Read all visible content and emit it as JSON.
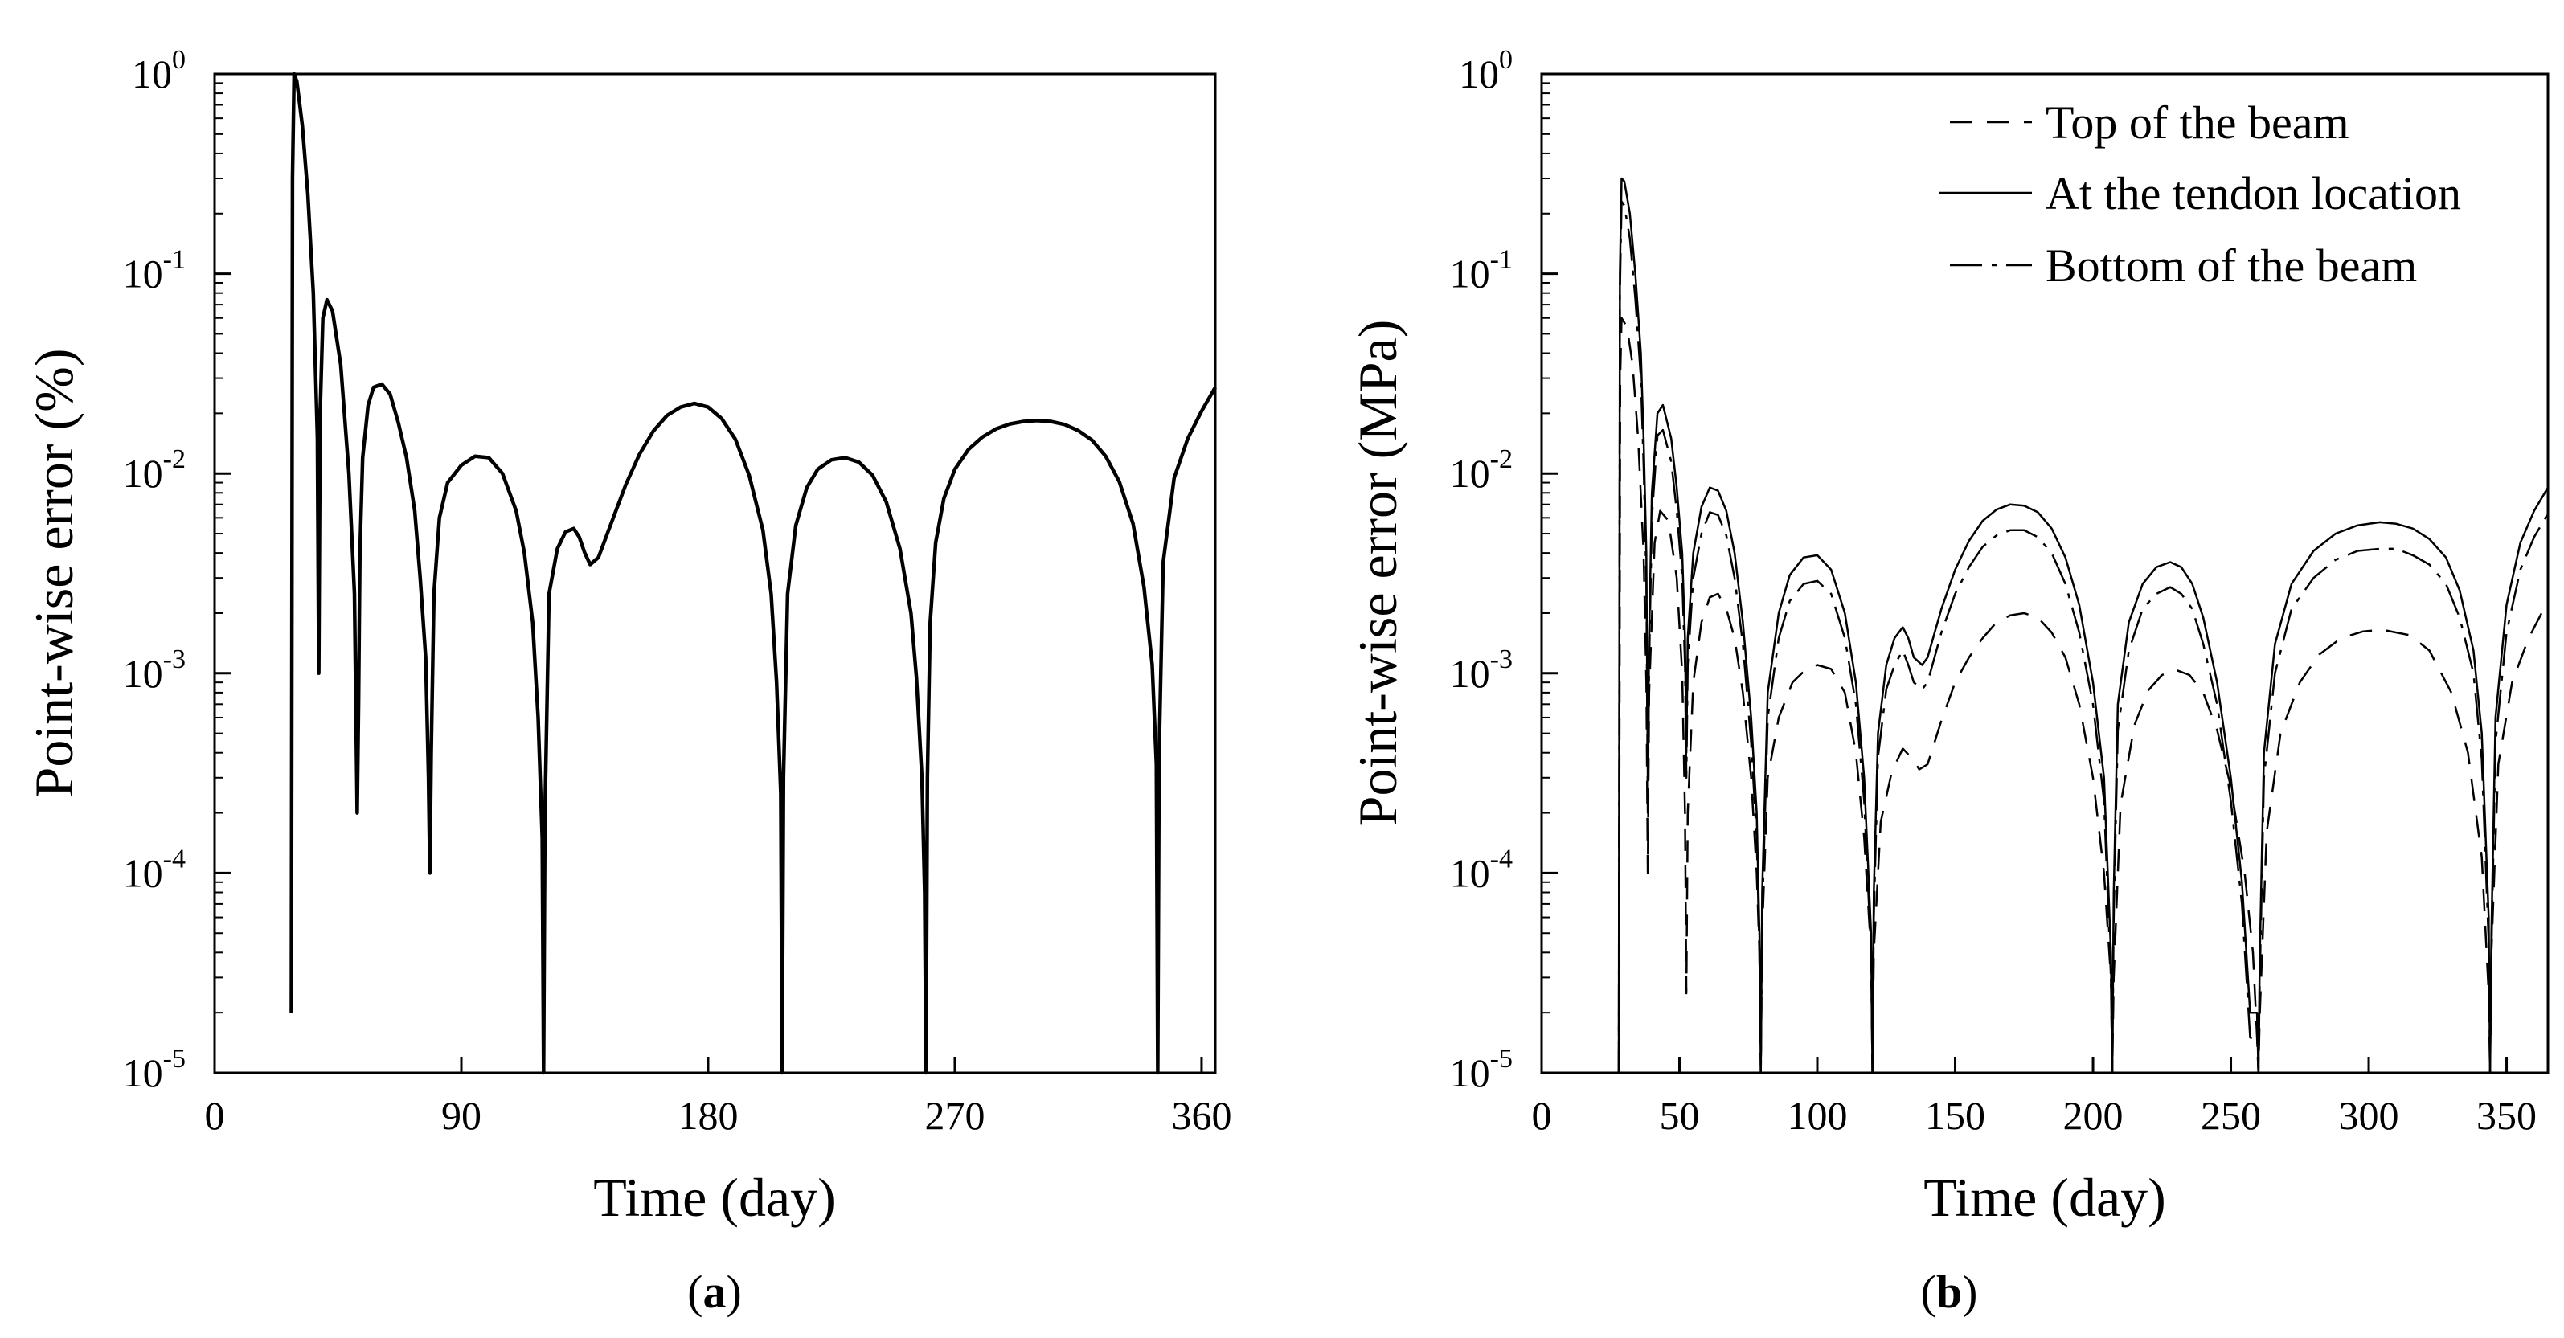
{
  "chart_data": [
    {
      "type": "line",
      "panel_label": "a",
      "xlabel": "Time (day)",
      "ylabel": "Point-wise error (%)",
      "xlim": [
        0,
        365
      ],
      "xticks": [
        0,
        90,
        180,
        270,
        360
      ],
      "ylim": [
        1e-05,
        1
      ],
      "yscale": "log",
      "yticks": [
        {
          "value": 1e-05,
          "base": "10",
          "exp": "-5"
        },
        {
          "value": 0.0001,
          "base": "10",
          "exp": "-4"
        },
        {
          "value": 0.001,
          "base": "10",
          "exp": "-3"
        },
        {
          "value": 0.01,
          "base": "10",
          "exp": "-2"
        },
        {
          "value": 0.1,
          "base": "10",
          "exp": "-1"
        },
        {
          "value": 1,
          "base": "10",
          "exp": "0"
        }
      ],
      "series": [
        {
          "name": "Point-wise error",
          "style": "solid-thick",
          "x": [
            28,
            28.4,
            29,
            30,
            32,
            34,
            36,
            37.5,
            38,
            38.5,
            39.5,
            41,
            43,
            46,
            49,
            51,
            52,
            52.5,
            53,
            54,
            56,
            58,
            61,
            64,
            67,
            70,
            73,
            75,
            77,
            78,
            78.5,
            79,
            80,
            82,
            85,
            90,
            95,
            100,
            105,
            110,
            113,
            116,
            118,
            119.5,
            120,
            120.5,
            122,
            125,
            128,
            131,
            133,
            135,
            137,
            140,
            145,
            150,
            155,
            160,
            165,
            170,
            175,
            180,
            185,
            190,
            195,
            200,
            203,
            205,
            206.5,
            207,
            207.5,
            209,
            212,
            216,
            220,
            225,
            230,
            235,
            240,
            245,
            250,
            254,
            256,
            258,
            259,
            259.5,
            260,
            261,
            263,
            266,
            270,
            275,
            280,
            285,
            290,
            295,
            300,
            305,
            310,
            315,
            320,
            325,
            330,
            335,
            339,
            342,
            343.5,
            344,
            344.5,
            346,
            350,
            355,
            360,
            365
          ],
          "y": [
            2e-05,
            0.3,
            1,
            0.92,
            0.55,
            0.25,
            0.08,
            0.015,
            0.001,
            0.02,
            0.06,
            0.074,
            0.065,
            0.035,
            0.01,
            0.0025,
            0.0002,
            0.0007,
            0.004,
            0.012,
            0.022,
            0.027,
            0.028,
            0.025,
            0.018,
            0.012,
            0.0065,
            0.003,
            0.0012,
            0.0003,
            0.0001,
            0.0004,
            0.0025,
            0.006,
            0.009,
            0.011,
            0.0122,
            0.012,
            0.01,
            0.0065,
            0.004,
            0.0018,
            0.0006,
            0.00015,
            1e-05,
            0.0002,
            0.0025,
            0.0042,
            0.0051,
            0.0053,
            0.0048,
            0.004,
            0.0035,
            0.0038,
            0.0058,
            0.0088,
            0.0125,
            0.0163,
            0.0195,
            0.0215,
            0.0224,
            0.0215,
            0.0188,
            0.0148,
            0.0098,
            0.0052,
            0.0025,
            0.0009,
            0.00025,
            1e-05,
            0.0003,
            0.0025,
            0.0055,
            0.0085,
            0.0105,
            0.0117,
            0.012,
            0.0114,
            0.0098,
            0.0072,
            0.0042,
            0.002,
            0.00095,
            0.0003,
            8e-05,
            1e-05,
            0.0003,
            0.0018,
            0.0045,
            0.0075,
            0.0105,
            0.0132,
            0.0152,
            0.0167,
            0.0177,
            0.0182,
            0.0184,
            0.0182,
            0.0176,
            0.0164,
            0.0147,
            0.0122,
            0.0091,
            0.0056,
            0.0027,
            0.0011,
            0.00035,
            1e-05,
            0.0004,
            0.0036,
            0.0095,
            0.015,
            0.0205,
            0.027
          ]
        }
      ]
    },
    {
      "type": "line",
      "panel_label": "b",
      "xlabel": "Time (day)",
      "ylabel": "Point-wise error (MPa)",
      "xlim": [
        0,
        365
      ],
      "xticks": [
        0,
        50,
        100,
        150,
        200,
        250,
        300,
        350
      ],
      "ylim": [
        1e-05,
        1
      ],
      "yscale": "log",
      "yticks": [
        {
          "value": 1e-05,
          "base": "10",
          "exp": "-5"
        },
        {
          "value": 0.0001,
          "base": "10",
          "exp": "-4"
        },
        {
          "value": 0.001,
          "base": "10",
          "exp": "-3"
        },
        {
          "value": 0.01,
          "base": "10",
          "exp": "-2"
        },
        {
          "value": 0.1,
          "base": "10",
          "exp": "-1"
        },
        {
          "value": 1,
          "base": "10",
          "exp": "0"
        }
      ],
      "legend_position": "top-right",
      "series": [
        {
          "name": "Top of the beam",
          "style": "dashed",
          "x": [
            28,
            28.5,
            29,
            31,
            33,
            35,
            37,
            38,
            38.5,
            39,
            41,
            43,
            46,
            49,
            51,
            52,
            52.5,
            53,
            55,
            58,
            61,
            64,
            67,
            70,
            73,
            76,
            78,
            79,
            79.5,
            80,
            82,
            86,
            91,
            96,
            100,
            105,
            110,
            114,
            117,
            119.5,
            120,
            120.5,
            123,
            127,
            131,
            134,
            137,
            140,
            145,
            150,
            155,
            160,
            165,
            170,
            175,
            180,
            185,
            190,
            195,
            200,
            204,
            206.5,
            207,
            207.5,
            210,
            215,
            220,
            225,
            230,
            235,
            240,
            245,
            250,
            255,
            258,
            259.5,
            260,
            260.5,
            263,
            268,
            275,
            282,
            290,
            298,
            305,
            310,
            315,
            322,
            330,
            336,
            341,
            343.5,
            344,
            344.5,
            347,
            352,
            358,
            365
          ],
          "y": [
            1e-05,
            0.03,
            0.06,
            0.054,
            0.035,
            0.015,
            0.004,
            0.0009,
            0.0001,
            0.0008,
            0.0045,
            0.0065,
            0.0058,
            0.003,
            0.001,
            0.0002,
            2.5e-05,
            0.0002,
            0.0009,
            0.0018,
            0.0024,
            0.0025,
            0.0021,
            0.0015,
            0.0008,
            0.0003,
            0.0001,
            4e-05,
            1e-05,
            5e-05,
            0.0003,
            0.0006,
            0.0009,
            0.00105,
            0.0011,
            0.00105,
            0.0008,
            0.0004,
            0.00015,
            4e-05,
            1e-05,
            4e-05,
            0.00018,
            0.00032,
            0.00042,
            0.00038,
            0.00033,
            0.00035,
            0.00058,
            0.0009,
            0.0012,
            0.0015,
            0.0018,
            0.00195,
            0.002,
            0.0019,
            0.0016,
            0.0012,
            0.0007,
            0.0003,
            0.0001,
            3e-05,
            1e-05,
            3e-05,
            0.00022,
            0.00055,
            0.00082,
            0.00098,
            0.00104,
            0.00098,
            0.0008,
            0.00052,
            0.00027,
            0.0001,
            4e-05,
            1.5e-05,
            1e-05,
            2e-05,
            0.00016,
            0.0005,
            0.0009,
            0.00124,
            0.0015,
            0.00162,
            0.00165,
            0.0016,
            0.00155,
            0.0013,
            0.0008,
            0.0004,
            0.00012,
            2.5e-05,
            1e-05,
            4e-05,
            0.00035,
            0.0009,
            0.0015,
            0.0023
          ]
        },
        {
          "name": "At the tendon location",
          "style": "solid",
          "x": [
            28,
            28.4,
            29,
            30,
            32,
            34,
            36,
            37,
            38,
            38.5,
            39,
            40,
            42,
            44,
            47,
            49,
            51,
            52,
            52.5,
            53,
            55,
            58,
            61,
            64,
            67,
            70,
            73,
            76,
            78,
            79,
            79.5,
            80,
            82,
            86,
            90,
            95,
            100,
            105,
            110,
            114,
            117,
            119.5,
            120,
            120.5,
            122,
            125,
            128,
            131,
            133,
            135,
            138,
            140,
            145,
            150,
            155,
            160,
            165,
            170,
            175,
            180,
            185,
            190,
            195,
            200,
            204,
            206.5,
            207,
            207.5,
            209,
            213,
            218,
            223,
            228,
            232,
            236,
            240,
            245,
            250,
            254,
            257,
            259.5,
            260,
            260.5,
            262,
            266,
            272,
            280,
            288,
            296,
            304,
            310,
            316,
            322,
            328,
            333,
            338,
            341,
            343.5,
            344,
            344.5,
            346,
            350,
            355,
            360,
            365
          ],
          "y": [
            1e-05,
            0.1,
            0.3,
            0.29,
            0.2,
            0.1,
            0.04,
            0.015,
            0.004,
            0.0003,
            0.0015,
            0.008,
            0.02,
            0.022,
            0.015,
            0.0085,
            0.004,
            0.0015,
            0.0004,
            0.0015,
            0.004,
            0.0068,
            0.0085,
            0.0082,
            0.0065,
            0.004,
            0.0018,
            0.0006,
            0.0002,
            5e-05,
            1e-05,
            8e-05,
            0.0008,
            0.002,
            0.0031,
            0.0038,
            0.0039,
            0.0033,
            0.002,
            0.0009,
            0.0003,
            5e-05,
            1e-05,
            8e-05,
            0.0005,
            0.0011,
            0.0015,
            0.0017,
            0.0015,
            0.0012,
            0.0011,
            0.0012,
            0.0021,
            0.0033,
            0.0046,
            0.0058,
            0.0066,
            0.007,
            0.0069,
            0.0064,
            0.0053,
            0.0038,
            0.0022,
            0.0009,
            0.0003,
            4e-05,
            1e-05,
            8e-05,
            0.0007,
            0.0018,
            0.0028,
            0.0034,
            0.0036,
            0.0034,
            0.0028,
            0.0019,
            0.0009,
            0.0003,
            9e-05,
            2e-05,
            2e-05,
            1e-05,
            4e-05,
            0.0004,
            0.0014,
            0.0028,
            0.0041,
            0.005,
            0.0055,
            0.0057,
            0.0056,
            0.0053,
            0.0047,
            0.0038,
            0.0026,
            0.0013,
            0.0005,
            6e-05,
            1e-05,
            5e-05,
            0.0006,
            0.0022,
            0.0045,
            0.0065,
            0.0085
          ]
        },
        {
          "name": "Bottom of the beam",
          "style": "dash-dot",
          "x": [
            28,
            28.4,
            29,
            30,
            32,
            34,
            36,
            37,
            38,
            38.5,
            39,
            40,
            42,
            44,
            47,
            49,
            51,
            52,
            52.5,
            53,
            55,
            58,
            61,
            64,
            67,
            70,
            73,
            76,
            78,
            79,
            79.5,
            80,
            82,
            86,
            90,
            95,
            100,
            105,
            110,
            114,
            117,
            119.5,
            120,
            120.5,
            122,
            125,
            128,
            131,
            133,
            135,
            138,
            140,
            145,
            150,
            155,
            160,
            165,
            170,
            175,
            180,
            185,
            190,
            195,
            200,
            204,
            206.5,
            207,
            207.5,
            209,
            213,
            218,
            223,
            228,
            232,
            236,
            240,
            245,
            250,
            254,
            257,
            259.5,
            260,
            260.5,
            262,
            266,
            272,
            280,
            288,
            296,
            304,
            310,
            316,
            322,
            328,
            333,
            338,
            341,
            343.5,
            344,
            344.5,
            346,
            350,
            355,
            360,
            365
          ],
          "y": [
            1e-05,
            0.08,
            0.23,
            0.22,
            0.15,
            0.075,
            0.03,
            0.011,
            0.003,
            0.0002,
            0.0011,
            0.006,
            0.0155,
            0.0165,
            0.0115,
            0.0065,
            0.003,
            0.0011,
            0.0003,
            0.0011,
            0.003,
            0.005,
            0.0064,
            0.0062,
            0.0049,
            0.003,
            0.0014,
            0.00045,
            0.00015,
            4e-05,
            1e-05,
            6e-05,
            0.0006,
            0.0015,
            0.0023,
            0.0028,
            0.0029,
            0.0025,
            0.0015,
            0.0007,
            0.00023,
            4e-05,
            1e-05,
            6e-05,
            0.00038,
            0.00083,
            0.0011,
            0.0013,
            0.0011,
            0.0009,
            0.00083,
            0.0009,
            0.0016,
            0.0025,
            0.0034,
            0.0043,
            0.0049,
            0.0052,
            0.0052,
            0.0048,
            0.004,
            0.0028,
            0.0016,
            0.0007,
            0.00023,
            3e-05,
            1e-05,
            6e-05,
            0.00052,
            0.0013,
            0.0021,
            0.0025,
            0.0027,
            0.0025,
            0.0021,
            0.0014,
            0.0007,
            0.00023,
            7e-05,
            1.5e-05,
            1.5e-05,
            1e-05,
            3e-05,
            0.0003,
            0.001,
            0.0021,
            0.003,
            0.0037,
            0.0041,
            0.0042,
            0.0042,
            0.0039,
            0.0035,
            0.0028,
            0.0019,
            0.001,
            0.00037,
            4.5e-05,
            1e-05,
            4e-05,
            0.00045,
            0.0016,
            0.0033,
            0.0048,
            0.0063
          ]
        }
      ]
    }
  ]
}
